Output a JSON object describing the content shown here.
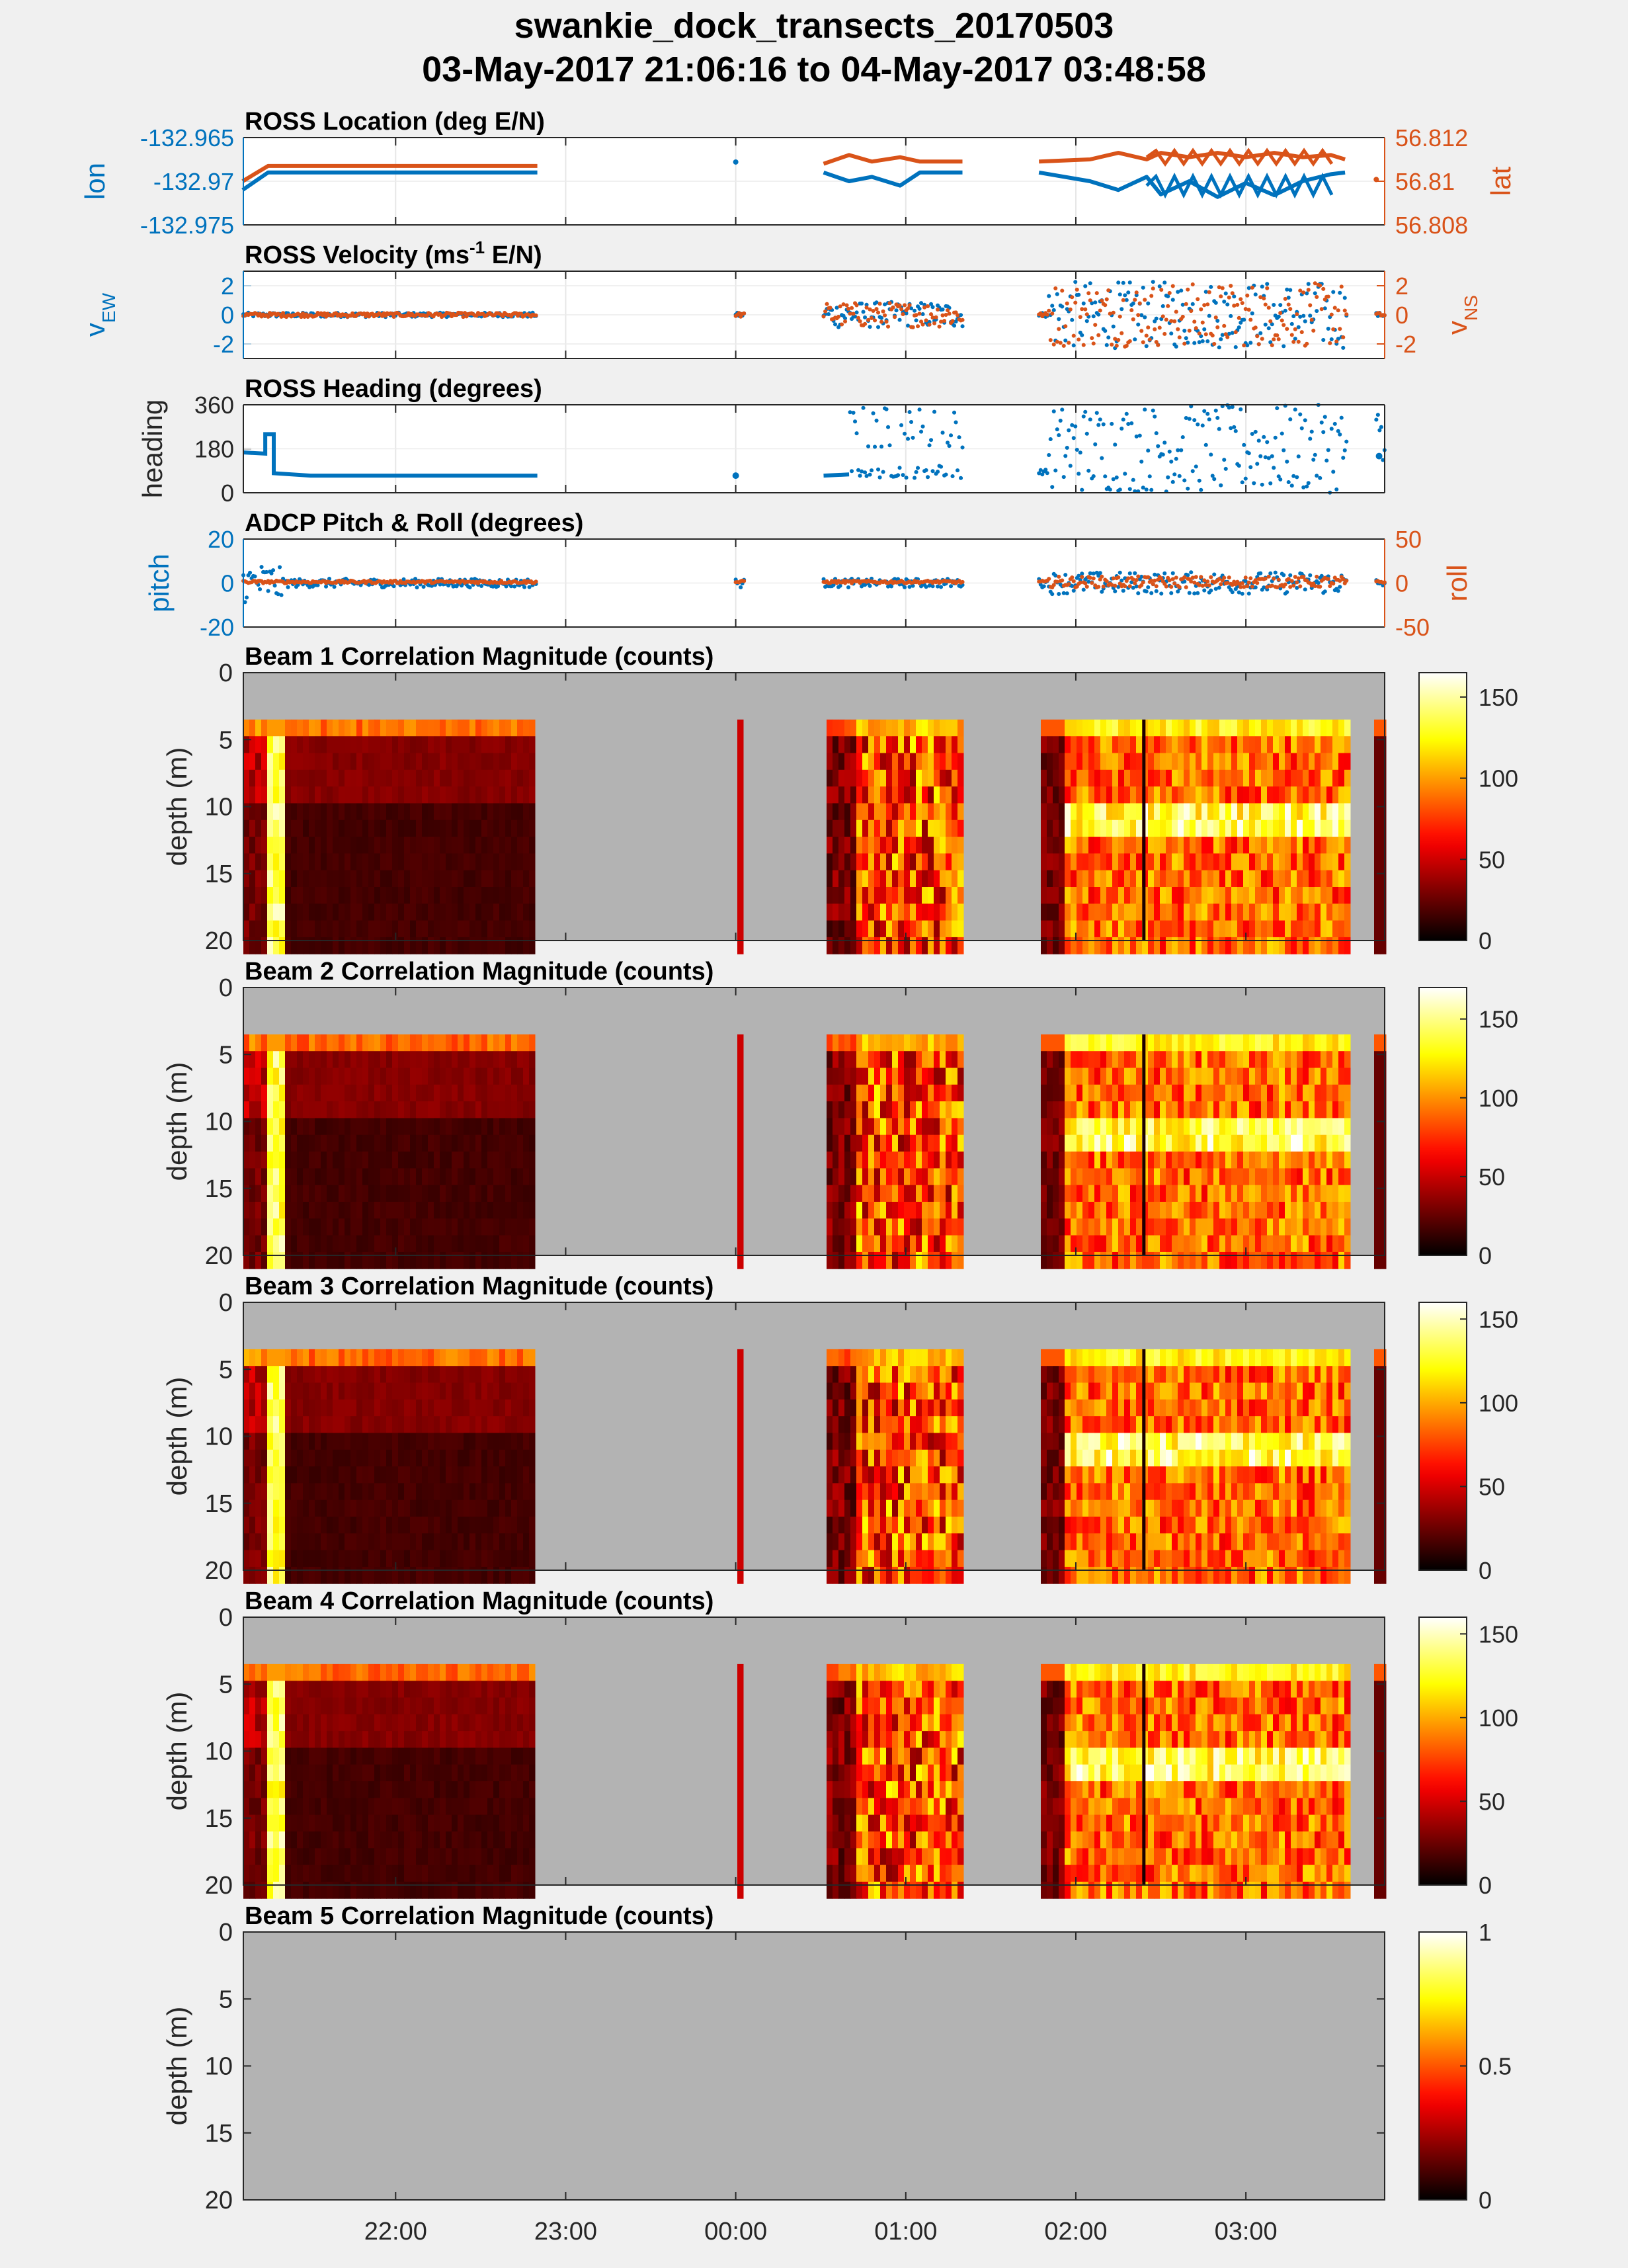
{
  "figure": {
    "title_line1": "swankie_dock_transects_20170503",
    "title_line2": "03-May-2017 21:06:16 to 04-May-2017 03:48:58"
  },
  "colors": {
    "series_blue": "#0072bd",
    "series_orange": "#d95319",
    "background": "#f0f0f0",
    "nodata_gray": "#b3b3b3"
  },
  "time_axis": {
    "start": "21:06:16",
    "end": "03:48:58",
    "tick_labels": [
      "22:00",
      "23:00",
      "00:00",
      "01:00",
      "02:00",
      "03:00"
    ]
  },
  "chart_data": [
    {
      "type": "line",
      "title": "ROSS Location (deg E/N)",
      "ylabel_left": "lon",
      "ylabel_right": "lat",
      "left_ticks": [
        "-132.965",
        "-132.97",
        "-132.975"
      ],
      "right_ticks": [
        "56.812",
        "56.81",
        "56.808"
      ],
      "ylim_left": [
        -132.975,
        -132.965
      ],
      "ylim_right": [
        56.808,
        56.812
      ],
      "series": [
        {
          "axis": "left",
          "color": "#0072bd",
          "x": [
            "21:06",
            "21:15",
            "21:20",
            "22:50",
            "00:00",
            "00:31",
            "00:40",
            "00:48",
            "00:58",
            "01:05",
            "01:15",
            "01:20",
            "01:47",
            "02:05",
            "02:15",
            "02:25",
            "02:30",
            "02:40",
            "02:50",
            "03:00",
            "03:10",
            "03:20",
            "03:30",
            "03:35"
          ],
          "values": [
            -132.971,
            -132.969,
            -132.969,
            -132.969,
            -132.969,
            -132.969,
            -132.97,
            -132.9695,
            -132.9705,
            -132.969,
            -132.969,
            -132.969,
            -132.969,
            -132.97,
            -132.971,
            -132.9695,
            -132.9715,
            -132.97,
            -132.9718,
            -132.9702,
            -132.9716,
            -132.97,
            -132.9692,
            -132.969
          ]
        },
        {
          "axis": "right",
          "color": "#d95319",
          "x": [
            "21:06",
            "21:15",
            "21:20",
            "22:50",
            "00:00",
            "00:31",
            "00:40",
            "00:48",
            "00:58",
            "01:05",
            "01:15",
            "01:20",
            "01:47",
            "02:05",
            "02:15",
            "02:25",
            "02:30",
            "02:40",
            "02:50",
            "03:00",
            "03:10",
            "03:20",
            "03:30",
            "03:35"
          ],
          "values": [
            56.81,
            56.8107,
            56.8107,
            56.8107,
            56.8107,
            56.8108,
            56.8112,
            56.8109,
            56.8111,
            56.8109,
            56.8109,
            56.8109,
            56.8109,
            56.811,
            56.8113,
            56.811,
            56.8113,
            56.8111,
            56.8113,
            56.8111,
            56.8113,
            56.8111,
            56.8112,
            56.811
          ]
        }
      ]
    },
    {
      "type": "scatter",
      "title": "ROSS Velocity (ms",
      "title_sup": "-1",
      "title_rest": " E/N)",
      "ylabel_left": "v",
      "ylabel_left_sub": "EW",
      "ylabel_right": "v",
      "ylabel_right_sub": "NS",
      "left_ticks": [
        "2",
        "0",
        "-2"
      ],
      "right_ticks": [
        "2",
        "0",
        "-2"
      ],
      "ylim": [
        -3,
        3
      ],
      "series": [
        {
          "name": "",
          "color": "#0072bd",
          "values": [
            0.0,
            0.3,
            -0.4,
            0.2,
            -1.8,
            1.9,
            2.2,
            -2.1
          ]
        },
        {
          "name": "",
          "color": "#d95319",
          "values": [
            0.0,
            -0.2,
            0.6,
            -0.8,
            2.0,
            -2.2,
            2.4,
            -2.5
          ]
        }
      ]
    },
    {
      "type": "scatter",
      "title": "ROSS Heading (degrees)",
      "ylabel_left": "heading",
      "left_ticks": [
        "360",
        "180",
        "0"
      ],
      "ylim": [
        0,
        360
      ],
      "series": [
        {
          "name": "",
          "color": "#0072bd",
          "x": [
            "21:06",
            "21:15",
            "21:20",
            "21:30",
            "22:00",
            "22:50",
            "00:00",
            "00:31",
            "00:40",
            "01:05",
            "01:20",
            "01:47",
            "02:00",
            "02:30",
            "03:00",
            "03:30"
          ],
          "values": [
            170,
            160,
            240,
            70,
            70,
            72,
            70,
            70,
            90,
            85,
            80,
            75,
            360,
            120,
            300,
            80
          ]
        }
      ]
    },
    {
      "type": "scatter",
      "title": "ADCP Pitch & Roll (degrees)",
      "ylabel_left": "pitch",
      "ylabel_right": "roll",
      "left_ticks": [
        "20",
        "0",
        "-20"
      ],
      "right_ticks": [
        "50",
        "0",
        "-50"
      ],
      "ylim_left": [
        -20,
        20
      ],
      "ylim_right": [
        -50,
        50
      ],
      "series": [
        {
          "name": "",
          "color": "#0072bd",
          "values": [
            0,
            -14,
            5,
            0,
            2,
            -1,
            15,
            0
          ]
        },
        {
          "name": "",
          "color": "#d95319",
          "values": [
            0,
            2,
            0,
            1,
            -1,
            3,
            0,
            0
          ]
        }
      ]
    },
    {
      "type": "heatmap",
      "title": "Beam 1 Correlation Magnitude (counts)",
      "ylabel": "depth (m)",
      "y_ticks": [
        "0",
        "5",
        "10",
        "15",
        "20"
      ],
      "ylim": [
        0,
        20
      ],
      "clim": [
        0,
        165
      ],
      "colorbar_ticks": [
        "150",
        "100",
        "50",
        "0"
      ]
    },
    {
      "type": "heatmap",
      "title": "Beam 2 Correlation Magnitude (counts)",
      "ylabel": "depth (m)",
      "y_ticks": [
        "0",
        "5",
        "10",
        "15",
        "20"
      ],
      "ylim": [
        0,
        20
      ],
      "clim": [
        0,
        170
      ],
      "colorbar_ticks": [
        "150",
        "100",
        "50",
        "0"
      ]
    },
    {
      "type": "heatmap",
      "title": "Beam 3 Correlation Magnitude (counts)",
      "ylabel": "depth (m)",
      "y_ticks": [
        "0",
        "5",
        "10",
        "15",
        "20"
      ],
      "ylim": [
        0,
        20
      ],
      "clim": [
        0,
        160
      ],
      "colorbar_ticks": [
        "150",
        "100",
        "50",
        "0"
      ]
    },
    {
      "type": "heatmap",
      "title": "Beam 4 Correlation Magnitude (counts)",
      "ylabel": "depth (m)",
      "y_ticks": [
        "0",
        "5",
        "10",
        "15",
        "20"
      ],
      "ylim": [
        0,
        20
      ],
      "clim": [
        0,
        160
      ],
      "colorbar_ticks": [
        "150",
        "100",
        "50",
        "0"
      ]
    },
    {
      "type": "heatmap",
      "title": "Beam 5 Correlation Magnitude (counts)",
      "ylabel": "depth (m)",
      "y_ticks": [
        "0",
        "5",
        "10",
        "15",
        "20"
      ],
      "ylim": [
        0,
        20
      ],
      "clim": [
        0,
        1
      ],
      "colorbar_ticks": [
        "1",
        "0.5",
        "0"
      ],
      "empty": true
    }
  ]
}
